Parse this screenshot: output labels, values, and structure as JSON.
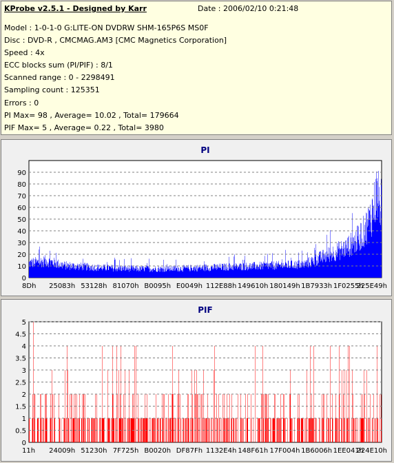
{
  "header": {
    "app_title": "KProbe v2.5.1 - Designed by Karr",
    "date": "Date : 2006/02/10 0:21:48",
    "lines": [
      "Model : 1-0-1-0 G:LITE-ON DVDRW SHM-165P6S MS0F",
      "Disc : DVD-R , CMCMAG.AM3 [CMC Magnetics Corporation]",
      "Speed : 4x",
      "ECC blocks sum (PI/PIF) : 8/1",
      "Scanned range : 0 - 2298491",
      "Sampling count : 125351",
      "Errors : 0",
      "PI Max= 98 , Average= 10.02 , Total= 179664",
      "PIF Max= 5 , Average= 0.22 , Total= 3980"
    ]
  },
  "chart_data": [
    {
      "type": "bar",
      "title": "PI",
      "color": "#0000ff",
      "ylim": [
        0,
        100
      ],
      "y_ticks": [
        "0",
        "10",
        "20",
        "30",
        "40",
        "50",
        "60",
        "70",
        "80",
        "90"
      ],
      "y_grid_dashed": true,
      "x_tick_labels": [
        "8Dh",
        "25083h",
        "53128h",
        "81070h",
        "B0095h",
        "E0049h",
        "112E88h",
        "149610h",
        "180149h",
        "1B7933h",
        "1F0255h",
        "225E49h"
      ],
      "summary": {
        "max": 98,
        "average": 10.02,
        "total": 179664
      },
      "profile_x_fraction": [
        0,
        0.05,
        0.1,
        0.2,
        0.3,
        0.4,
        0.5,
        0.6,
        0.7,
        0.78,
        0.82,
        0.86,
        0.9,
        0.93,
        0.95,
        0.97,
        0.985,
        1.0
      ],
      "profile_y": [
        13,
        15,
        11,
        9,
        8,
        8,
        9,
        10,
        11,
        12,
        17,
        22,
        27,
        34,
        42,
        55,
        75,
        65
      ]
    },
    {
      "type": "bar",
      "title": "PIF",
      "color": "#ff0000",
      "ylim": [
        0,
        5
      ],
      "y_ticks": [
        "0",
        "0.5",
        "1",
        "1.5",
        "2",
        "2.5",
        "3",
        "3.5",
        "4",
        "4.5",
        "5"
      ],
      "y_grid_dashed": true,
      "x_tick_labels": [
        "11h",
        "24009h",
        "51230h",
        "7F725h",
        "B0020h",
        "DF87Fh",
        "1132E4h",
        "148F61h",
        "17F004h",
        "1B6006h",
        "1EE041h",
        "224E10h"
      ],
      "summary": {
        "max": 5,
        "average": 0.22,
        "total": 3980
      }
    }
  ]
}
